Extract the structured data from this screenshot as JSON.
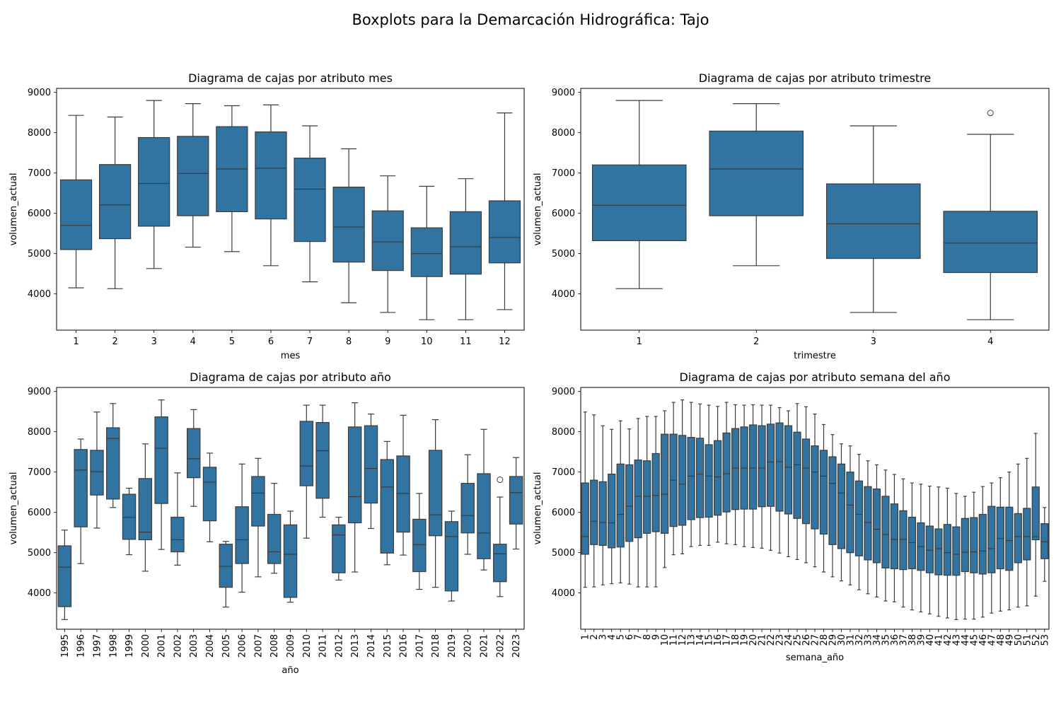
{
  "suptitle": "Boxplots para la Demarcación Hidrográfica: Tajo",
  "colors": {
    "box": "#3274a1",
    "line": "#3b3b3b"
  },
  "chart_data": [
    {
      "type": "boxplot",
      "title": "Diagrama de cajas por atributo mes",
      "xlabel": "mes",
      "ylabel": "volumen_actual",
      "ylim": [
        3100,
        9100
      ],
      "yticks": [
        4000,
        5000,
        6000,
        7000,
        8000,
        9000
      ],
      "categories": [
        "1",
        "2",
        "3",
        "4",
        "5",
        "6",
        "7",
        "8",
        "9",
        "10",
        "11",
        "12"
      ],
      "boxes": [
        {
          "wl": 4150,
          "q1": 5100,
          "med": 5700,
          "q3": 6830,
          "wh": 8430,
          "out": []
        },
        {
          "wl": 4130,
          "q1": 5370,
          "med": 6210,
          "q3": 7210,
          "wh": 8390,
          "out": []
        },
        {
          "wl": 4630,
          "q1": 5680,
          "med": 6740,
          "q3": 7880,
          "wh": 8800,
          "out": []
        },
        {
          "wl": 5160,
          "q1": 5940,
          "med": 6990,
          "q3": 7910,
          "wh": 8720,
          "out": []
        },
        {
          "wl": 5050,
          "q1": 6040,
          "med": 7100,
          "q3": 8150,
          "wh": 8670,
          "out": []
        },
        {
          "wl": 4700,
          "q1": 5860,
          "med": 7120,
          "q3": 8020,
          "wh": 8690,
          "out": []
        },
        {
          "wl": 4300,
          "q1": 5300,
          "med": 6600,
          "q3": 7370,
          "wh": 8170,
          "out": []
        },
        {
          "wl": 3780,
          "q1": 4790,
          "med": 5660,
          "q3": 6650,
          "wh": 7600,
          "out": []
        },
        {
          "wl": 3540,
          "q1": 4580,
          "med": 5290,
          "q3": 6060,
          "wh": 6930,
          "out": []
        },
        {
          "wl": 3360,
          "q1": 4430,
          "med": 5000,
          "q3": 5640,
          "wh": 6670,
          "out": []
        },
        {
          "wl": 3360,
          "q1": 4490,
          "med": 5170,
          "q3": 6040,
          "wh": 6860,
          "out": []
        },
        {
          "wl": 3610,
          "q1": 4770,
          "med": 5400,
          "q3": 6310,
          "wh": 8490,
          "out": []
        }
      ]
    },
    {
      "type": "boxplot",
      "title": "Diagrama de cajas por atributo trimestre",
      "xlabel": "trimestre",
      "ylabel": "volumen_actual",
      "ylim": [
        3100,
        9100
      ],
      "yticks": [
        4000,
        5000,
        6000,
        7000,
        8000,
        9000
      ],
      "categories": [
        "1",
        "2",
        "3",
        "4"
      ],
      "boxes": [
        {
          "wl": 4130,
          "q1": 5320,
          "med": 6200,
          "q3": 7200,
          "wh": 8800,
          "out": []
        },
        {
          "wl": 4700,
          "q1": 5940,
          "med": 7100,
          "q3": 8040,
          "wh": 8720,
          "out": []
        },
        {
          "wl": 3540,
          "q1": 4880,
          "med": 5740,
          "q3": 6730,
          "wh": 8170,
          "out": []
        },
        {
          "wl": 3360,
          "q1": 4530,
          "med": 5260,
          "q3": 6050,
          "wh": 7960,
          "out": [
            8490
          ]
        }
      ]
    },
    {
      "type": "boxplot",
      "title": "Diagrama de cajas por atributo año",
      "xlabel": "año",
      "ylabel": "volumen_actual",
      "ylim": [
        3100,
        9100
      ],
      "yticks": [
        4000,
        5000,
        6000,
        7000,
        8000,
        9000
      ],
      "categories": [
        "1995",
        "1996",
        "1997",
        "1998",
        "1999",
        "2000",
        "2001",
        "2002",
        "2003",
        "2004",
        "2005",
        "2006",
        "2007",
        "2008",
        "2009",
        "2010",
        "2011",
        "2012",
        "2013",
        "2014",
        "2015",
        "2016",
        "2017",
        "2018",
        "2019",
        "2020",
        "2021",
        "2022",
        "2023"
      ],
      "boxes": [
        {
          "wl": 3340,
          "q1": 3660,
          "med": 4640,
          "q3": 5170,
          "wh": 5560,
          "out": []
        },
        {
          "wl": 4730,
          "q1": 5640,
          "med": 7050,
          "q3": 7560,
          "wh": 7820,
          "out": []
        },
        {
          "wl": 5610,
          "q1": 6430,
          "med": 7010,
          "q3": 7540,
          "wh": 8490,
          "out": []
        },
        {
          "wl": 6120,
          "q1": 6330,
          "med": 7830,
          "q3": 8100,
          "wh": 8700,
          "out": []
        },
        {
          "wl": 4950,
          "q1": 5330,
          "med": 5880,
          "q3": 6450,
          "wh": 6600,
          "out": []
        },
        {
          "wl": 4540,
          "q1": 5320,
          "med": 5510,
          "q3": 6840,
          "wh": 7700,
          "out": []
        },
        {
          "wl": 5080,
          "q1": 6220,
          "med": 7590,
          "q3": 8370,
          "wh": 8790,
          "out": []
        },
        {
          "wl": 4690,
          "q1": 5020,
          "med": 5320,
          "q3": 5880,
          "wh": 6980,
          "out": []
        },
        {
          "wl": 6150,
          "q1": 6860,
          "med": 7330,
          "q3": 8080,
          "wh": 8550,
          "out": []
        },
        {
          "wl": 5270,
          "q1": 5790,
          "med": 6750,
          "q3": 7120,
          "wh": 7470,
          "out": []
        },
        {
          "wl": 3650,
          "q1": 4140,
          "med": 4660,
          "q3": 5210,
          "wh": 5280,
          "out": []
        },
        {
          "wl": 4020,
          "q1": 4730,
          "med": 5320,
          "q3": 6140,
          "wh": 7200,
          "out": []
        },
        {
          "wl": 4400,
          "q1": 5660,
          "med": 6480,
          "q3": 6890,
          "wh": 7340,
          "out": []
        },
        {
          "wl": 4490,
          "q1": 4730,
          "med": 5020,
          "q3": 5950,
          "wh": 6720,
          "out": []
        },
        {
          "wl": 3770,
          "q1": 3890,
          "med": 4960,
          "q3": 5690,
          "wh": 6030,
          "out": []
        },
        {
          "wl": 5360,
          "q1": 6660,
          "med": 7150,
          "q3": 8260,
          "wh": 8660,
          "out": []
        },
        {
          "wl": 5880,
          "q1": 6350,
          "med": 7530,
          "q3": 8230,
          "wh": 8660,
          "out": []
        },
        {
          "wl": 4320,
          "q1": 4500,
          "med": 5440,
          "q3": 5690,
          "wh": 5880,
          "out": []
        },
        {
          "wl": 4520,
          "q1": 5740,
          "med": 6390,
          "q3": 8120,
          "wh": 8720,
          "out": []
        },
        {
          "wl": 5600,
          "q1": 6230,
          "med": 7090,
          "q3": 8150,
          "wh": 8440,
          "out": []
        },
        {
          "wl": 4700,
          "q1": 4990,
          "med": 6630,
          "q3": 7310,
          "wh": 7760,
          "out": []
        },
        {
          "wl": 4940,
          "q1": 5510,
          "med": 6470,
          "q3": 7400,
          "wh": 8410,
          "out": []
        },
        {
          "wl": 4090,
          "q1": 4530,
          "med": 5200,
          "q3": 5830,
          "wh": 6470,
          "out": []
        },
        {
          "wl": 4140,
          "q1": 5420,
          "med": 5940,
          "q3": 7540,
          "wh": 8300,
          "out": []
        },
        {
          "wl": 3800,
          "q1": 4050,
          "med": 5400,
          "q3": 5770,
          "wh": 6030,
          "out": []
        },
        {
          "wl": 4960,
          "q1": 5490,
          "med": 5920,
          "q3": 6720,
          "wh": 7430,
          "out": []
        },
        {
          "wl": 4570,
          "q1": 4850,
          "med": 5490,
          "q3": 6960,
          "wh": 8060,
          "out": []
        },
        {
          "wl": 3910,
          "q1": 4280,
          "med": 4970,
          "q3": 5210,
          "wh": 6380,
          "out": [
            6810
          ]
        },
        {
          "wl": 5090,
          "q1": 5710,
          "med": 6490,
          "q3": 6890,
          "wh": 7360,
          "out": []
        }
      ]
    },
    {
      "type": "boxplot",
      "title": "Diagrama de cajas por atributo semana del año",
      "xlabel": "semana_año",
      "ylabel": "volumen_actual",
      "ylim": [
        3100,
        9100
      ],
      "yticks": [
        4000,
        5000,
        6000,
        7000,
        8000,
        9000
      ],
      "categories": [
        "1",
        "2",
        "3",
        "4",
        "5",
        "6",
        "7",
        "8",
        "9",
        "10",
        "11",
        "12",
        "13",
        "14",
        "15",
        "16",
        "17",
        "18",
        "19",
        "20",
        "21",
        "22",
        "23",
        "24",
        "25",
        "26",
        "27",
        "28",
        "29",
        "30",
        "31",
        "32",
        "33",
        "34",
        "35",
        "36",
        "37",
        "38",
        "39",
        "40",
        "41",
        "42",
        "43",
        "44",
        "45",
        "46",
        "47",
        "48",
        "49",
        "50",
        "51",
        "52",
        "53"
      ],
      "boxes": [
        {
          "wl": 4140,
          "q1": 4960,
          "med": 5400,
          "q3": 6730,
          "wh": 8490,
          "out": []
        },
        {
          "wl": 4150,
          "q1": 5200,
          "med": 5780,
          "q3": 6800,
          "wh": 8420,
          "out": []
        },
        {
          "wl": 4200,
          "q1": 5180,
          "med": 5750,
          "q3": 6760,
          "wh": 8150,
          "out": []
        },
        {
          "wl": 4230,
          "q1": 5120,
          "med": 5740,
          "q3": 6950,
          "wh": 8060,
          "out": []
        },
        {
          "wl": 4250,
          "q1": 5140,
          "med": 5950,
          "q3": 7200,
          "wh": 8270,
          "out": []
        },
        {
          "wl": 4220,
          "q1": 5280,
          "med": 6150,
          "q3": 7180,
          "wh": 8070,
          "out": []
        },
        {
          "wl": 4150,
          "q1": 5370,
          "med": 6400,
          "q3": 7300,
          "wh": 8330,
          "out": []
        },
        {
          "wl": 4150,
          "q1": 5480,
          "med": 6400,
          "q3": 7280,
          "wh": 8380,
          "out": []
        },
        {
          "wl": 4150,
          "q1": 5520,
          "med": 6420,
          "q3": 7460,
          "wh": 8380,
          "out": []
        },
        {
          "wl": 4630,
          "q1": 5480,
          "med": 6450,
          "q3": 7940,
          "wh": 8520,
          "out": []
        },
        {
          "wl": 4950,
          "q1": 5650,
          "med": 6800,
          "q3": 7940,
          "wh": 8730,
          "out": []
        },
        {
          "wl": 4970,
          "q1": 5680,
          "med": 6700,
          "q3": 7910,
          "wh": 8790,
          "out": []
        },
        {
          "wl": 5150,
          "q1": 5820,
          "med": 6900,
          "q3": 7860,
          "wh": 8730,
          "out": []
        },
        {
          "wl": 5180,
          "q1": 5870,
          "med": 6950,
          "q3": 7840,
          "wh": 8690,
          "out": []
        },
        {
          "wl": 5180,
          "q1": 5880,
          "med": 6900,
          "q3": 7680,
          "wh": 8660,
          "out": []
        },
        {
          "wl": 5260,
          "q1": 5930,
          "med": 6880,
          "q3": 7780,
          "wh": 8630,
          "out": []
        },
        {
          "wl": 5220,
          "q1": 6010,
          "med": 6960,
          "q3": 7970,
          "wh": 8730,
          "out": []
        },
        {
          "wl": 5200,
          "q1": 6070,
          "med": 7100,
          "q3": 8080,
          "wh": 8670,
          "out": []
        },
        {
          "wl": 5150,
          "q1": 6080,
          "med": 7100,
          "q3": 8120,
          "wh": 8660,
          "out": []
        },
        {
          "wl": 5130,
          "q1": 6080,
          "med": 7100,
          "q3": 8170,
          "wh": 8670,
          "out": []
        },
        {
          "wl": 5110,
          "q1": 6140,
          "med": 7100,
          "q3": 8150,
          "wh": 8660,
          "out": []
        },
        {
          "wl": 5060,
          "q1": 6150,
          "med": 7250,
          "q3": 8190,
          "wh": 8660,
          "out": []
        },
        {
          "wl": 4990,
          "q1": 6030,
          "med": 7260,
          "q3": 8220,
          "wh": 8600,
          "out": []
        },
        {
          "wl": 4900,
          "q1": 5960,
          "med": 7120,
          "q3": 8150,
          "wh": 8520,
          "out": []
        },
        {
          "wl": 4830,
          "q1": 5850,
          "med": 7180,
          "q3": 7990,
          "wh": 8700,
          "out": []
        },
        {
          "wl": 4750,
          "q1": 5720,
          "med": 7100,
          "q3": 7820,
          "wh": 8620,
          "out": []
        },
        {
          "wl": 4650,
          "q1": 5590,
          "med": 7000,
          "q3": 7650,
          "wh": 8440,
          "out": []
        },
        {
          "wl": 4520,
          "q1": 5460,
          "med": 6900,
          "q3": 7540,
          "wh": 8180,
          "out": []
        },
        {
          "wl": 4400,
          "q1": 5200,
          "med": 6720,
          "q3": 7380,
          "wh": 7930,
          "out": []
        },
        {
          "wl": 4300,
          "q1": 5100,
          "med": 6480,
          "q3": 7200,
          "wh": 7700,
          "out": []
        },
        {
          "wl": 4200,
          "q1": 5000,
          "med": 6180,
          "q3": 7000,
          "wh": 7650,
          "out": []
        },
        {
          "wl": 4080,
          "q1": 4920,
          "med": 5950,
          "q3": 6780,
          "wh": 7440,
          "out": []
        },
        {
          "wl": 3980,
          "q1": 4820,
          "med": 5750,
          "q3": 6640,
          "wh": 7280,
          "out": []
        },
        {
          "wl": 3900,
          "q1": 4750,
          "med": 5580,
          "q3": 6580,
          "wh": 7180,
          "out": []
        },
        {
          "wl": 3800,
          "q1": 4620,
          "med": 5450,
          "q3": 6400,
          "wh": 7050,
          "out": []
        },
        {
          "wl": 3780,
          "q1": 4600,
          "med": 5330,
          "q3": 6210,
          "wh": 6940,
          "out": []
        },
        {
          "wl": 3650,
          "q1": 4580,
          "med": 5330,
          "q3": 6040,
          "wh": 6830,
          "out": []
        },
        {
          "wl": 3580,
          "q1": 4600,
          "med": 5250,
          "q3": 5880,
          "wh": 6730,
          "out": []
        },
        {
          "wl": 3530,
          "q1": 4560,
          "med": 5150,
          "q3": 5740,
          "wh": 6700,
          "out": []
        },
        {
          "wl": 3480,
          "q1": 4500,
          "med": 5060,
          "q3": 5660,
          "wh": 6650,
          "out": []
        },
        {
          "wl": 3420,
          "q1": 4450,
          "med": 5100,
          "q3": 5590,
          "wh": 6630,
          "out": []
        },
        {
          "wl": 3380,
          "q1": 4440,
          "med": 5000,
          "q3": 5700,
          "wh": 6600,
          "out": []
        },
        {
          "wl": 3340,
          "q1": 4440,
          "med": 4960,
          "q3": 5640,
          "wh": 6470,
          "out": []
        },
        {
          "wl": 3350,
          "q1": 4530,
          "med": 5010,
          "q3": 5850,
          "wh": 6400,
          "out": []
        },
        {
          "wl": 3350,
          "q1": 4500,
          "med": 5020,
          "q3": 5870,
          "wh": 6500,
          "out": []
        },
        {
          "wl": 3400,
          "q1": 4470,
          "med": 5040,
          "q3": 5950,
          "wh": 6640,
          "out": []
        },
        {
          "wl": 3500,
          "q1": 4500,
          "med": 5100,
          "q3": 6150,
          "wh": 6730,
          "out": []
        },
        {
          "wl": 3550,
          "q1": 4600,
          "med": 5350,
          "q3": 6130,
          "wh": 6860,
          "out": []
        },
        {
          "wl": 3580,
          "q1": 4560,
          "med": 5300,
          "q3": 6130,
          "wh": 7000,
          "out": []
        },
        {
          "wl": 3650,
          "q1": 4750,
          "med": 5400,
          "q3": 5970,
          "wh": 7200,
          "out": []
        },
        {
          "wl": 3680,
          "q1": 4820,
          "med": 5400,
          "q3": 6100,
          "wh": 7340,
          "out": []
        },
        {
          "wl": 3920,
          "q1": 5320,
          "med": 5400,
          "q3": 6630,
          "wh": 7960,
          "out": []
        },
        {
          "wl": 4290,
          "q1": 4850,
          "med": 5270,
          "q3": 5720,
          "wh": 6120,
          "out": []
        }
      ]
    }
  ]
}
